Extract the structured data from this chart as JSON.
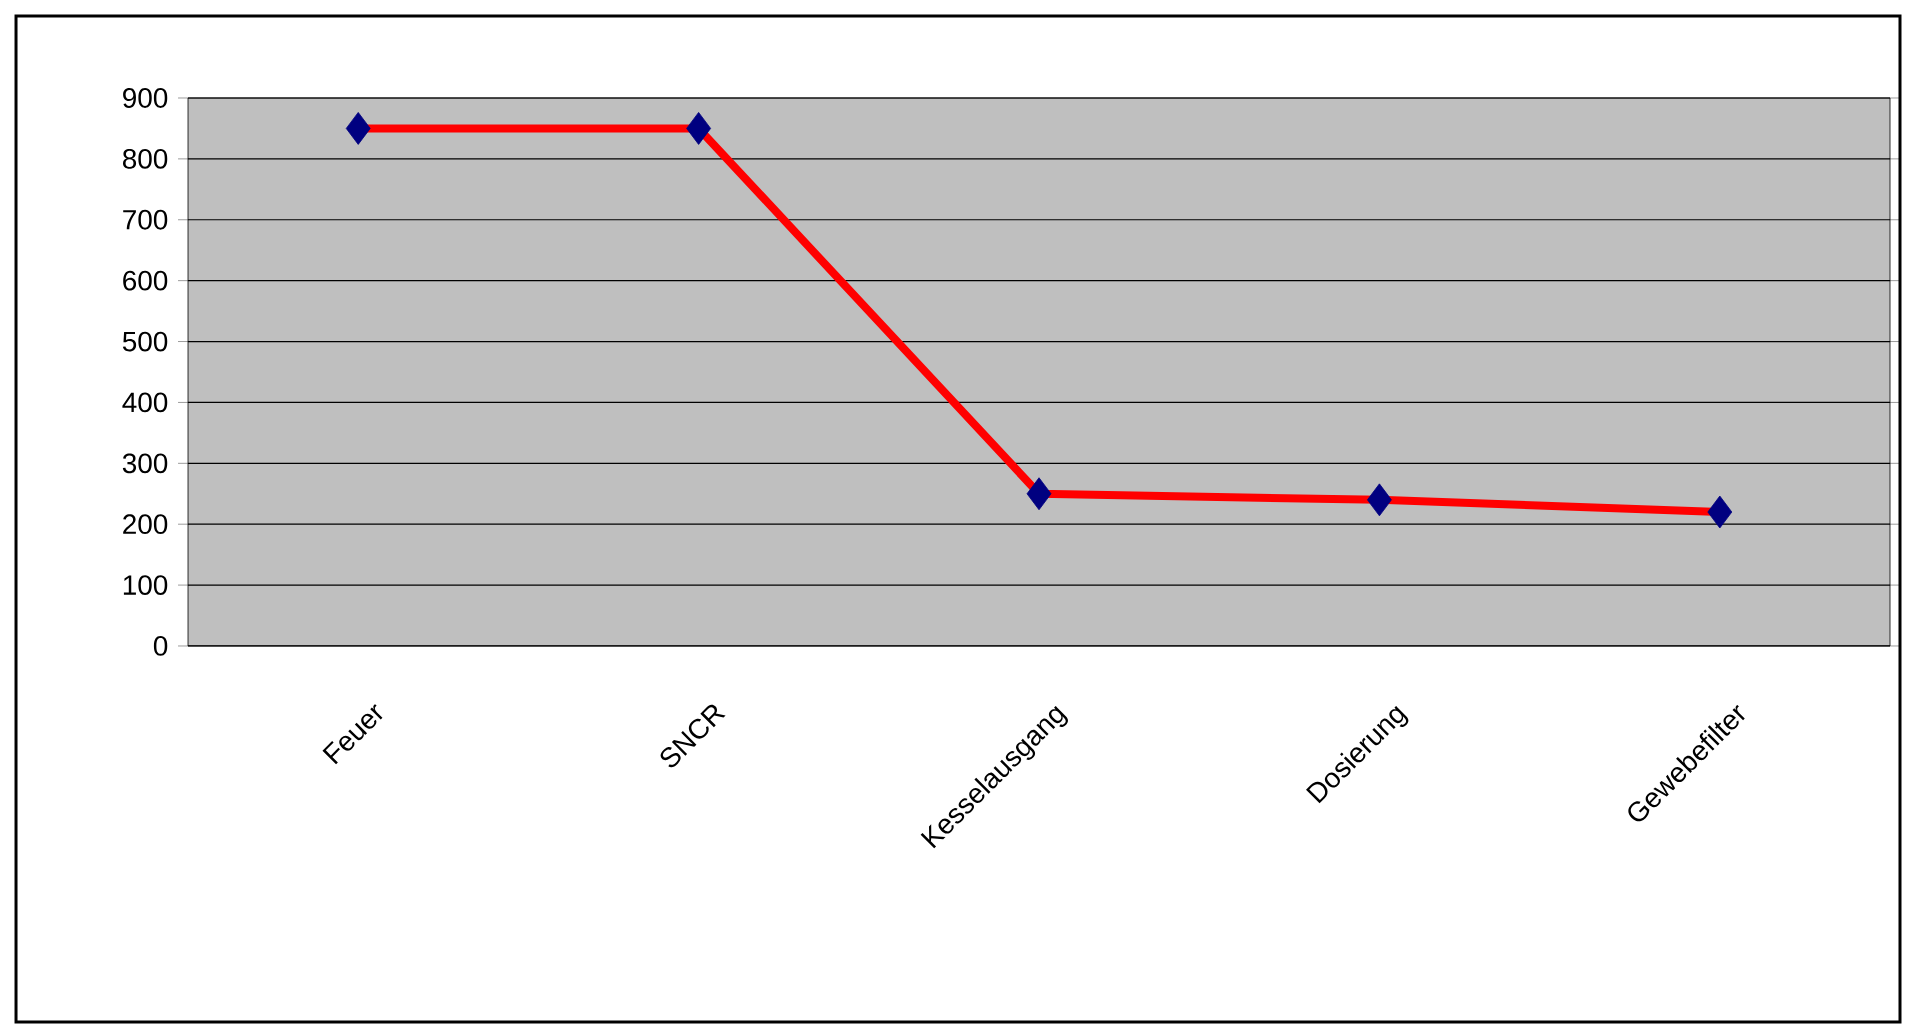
{
  "chart_data": {
    "type": "line",
    "categories": [
      "Feuer",
      "SNCR",
      "Kesselausgang",
      "Dosierung",
      "Gewebefilter"
    ],
    "series": [
      {
        "color": "#ff0000",
        "colors": [
          "#000080",
          "#000080",
          "#000080",
          "#000080",
          "#000080"
        ],
        "values": [
          850,
          850,
          250,
          240,
          220
        ]
      }
    ],
    "ylim": [
      0,
      900
    ],
    "yticks": [
      0,
      100,
      200,
      300,
      400,
      500,
      600,
      700,
      800,
      900
    ],
    "grid": "y",
    "marker": "diamond",
    "line_style": "solid"
  }
}
